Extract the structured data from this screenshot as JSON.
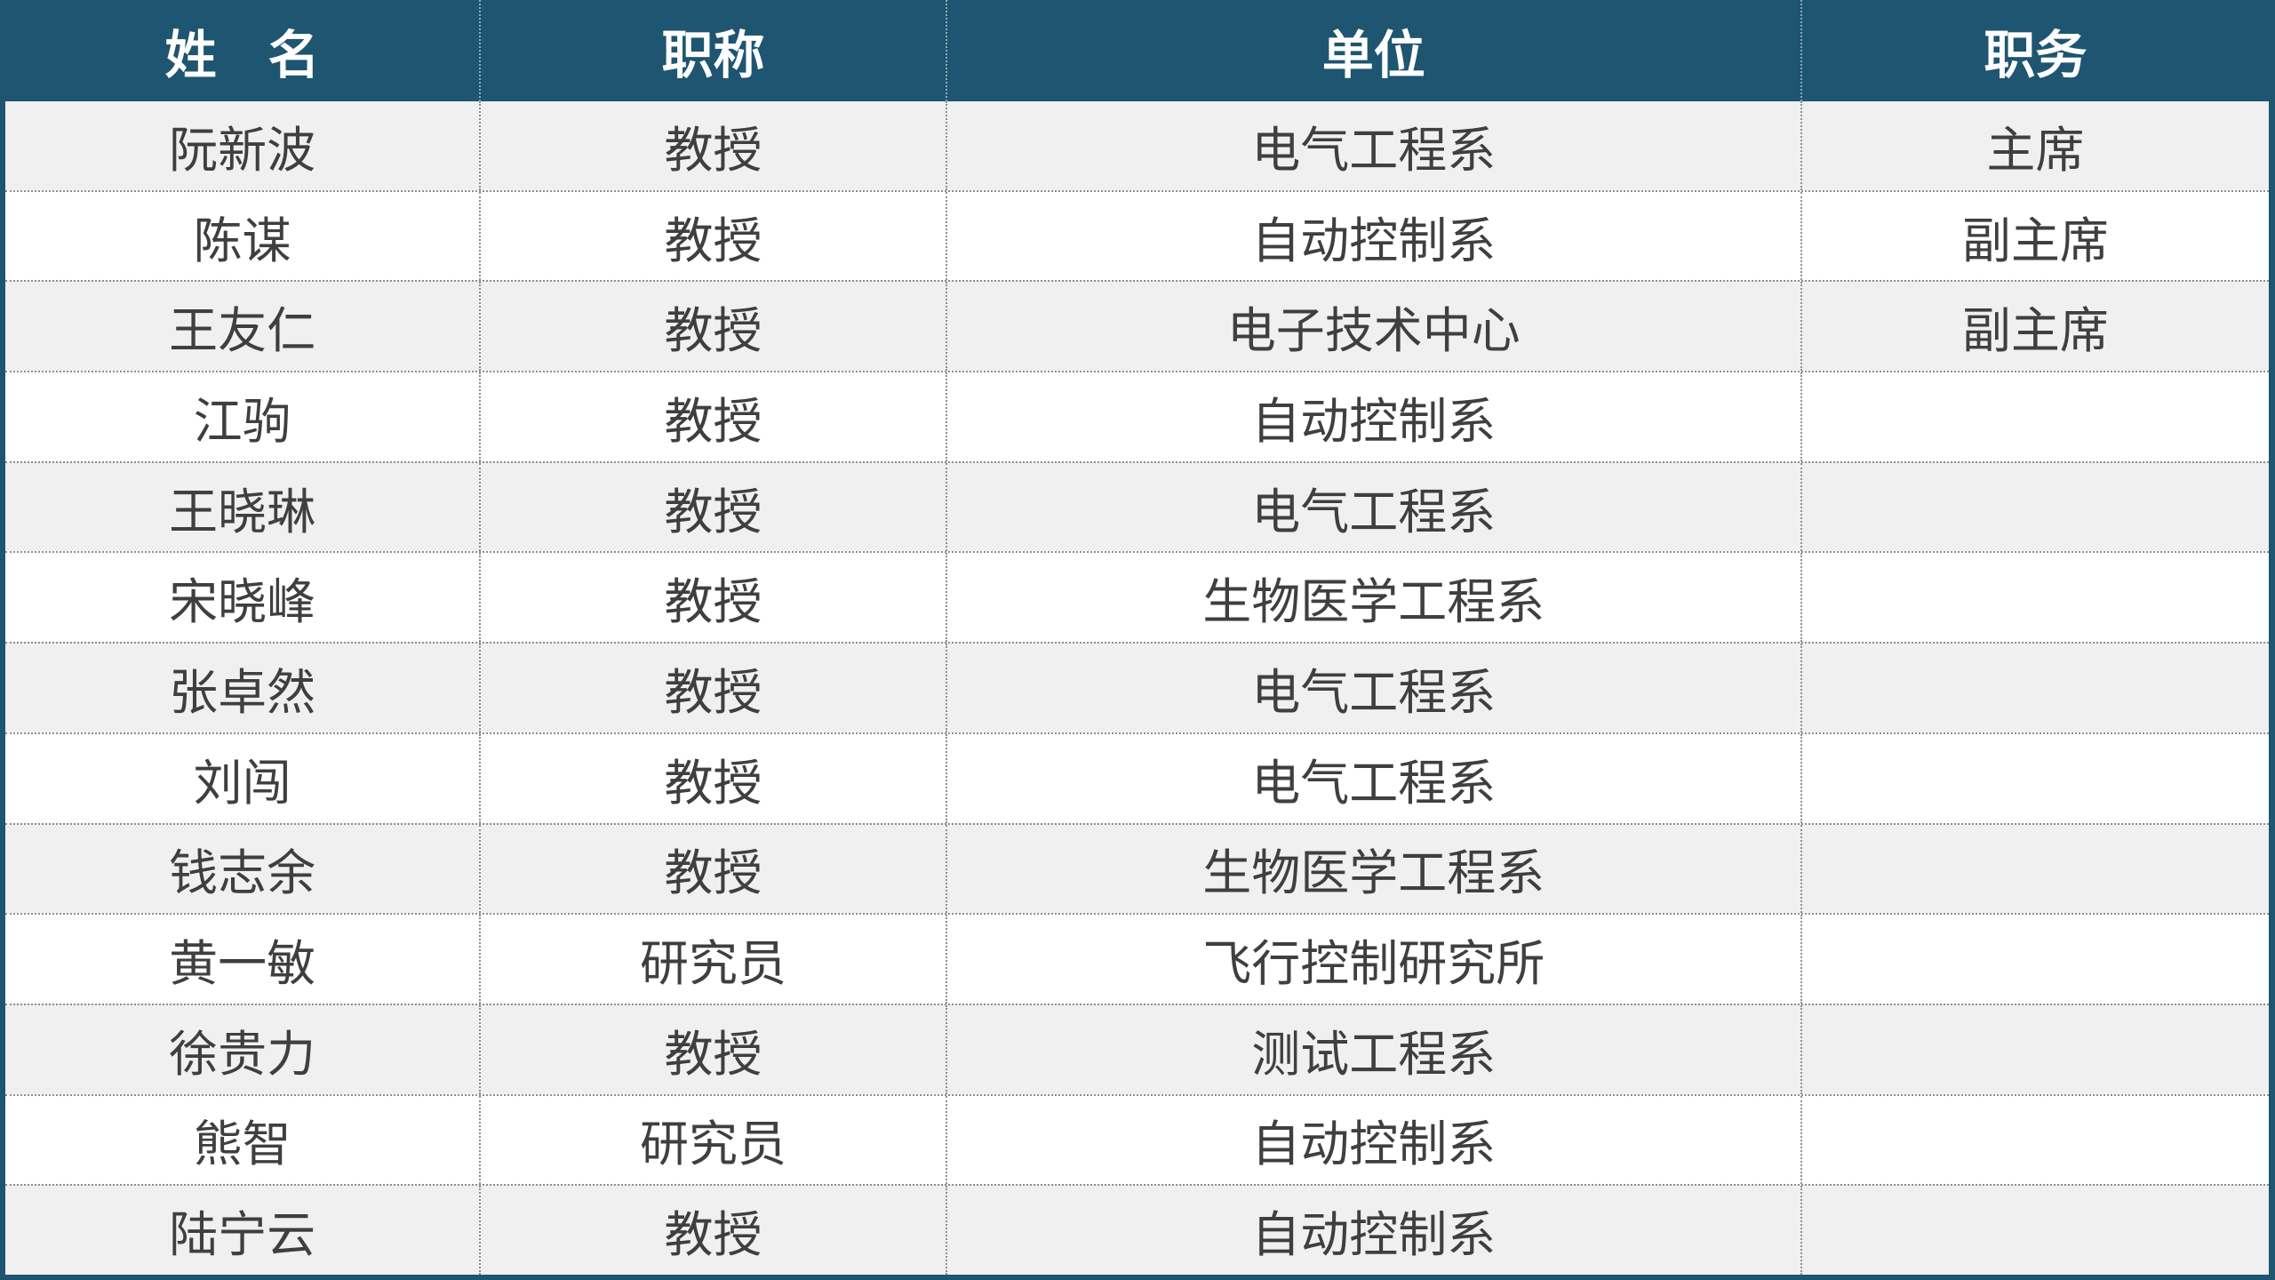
{
  "table": {
    "columns": [
      {
        "key": "name",
        "label": "姓　名"
      },
      {
        "key": "title",
        "label": "职称"
      },
      {
        "key": "unit",
        "label": "单位"
      },
      {
        "key": "position",
        "label": "职务"
      }
    ],
    "rows": [
      {
        "name": "阮新波",
        "title": "教授",
        "unit": "电气工程系",
        "position": "主席"
      },
      {
        "name": "陈谋",
        "title": "教授",
        "unit": "自动控制系",
        "position": "副主席"
      },
      {
        "name": "王友仁",
        "title": "教授",
        "unit": "电子技术中心",
        "position": "副主席"
      },
      {
        "name": "江驹",
        "title": "教授",
        "unit": "自动控制系",
        "position": ""
      },
      {
        "name": "王晓琳",
        "title": "教授",
        "unit": "电气工程系",
        "position": ""
      },
      {
        "name": "宋晓峰",
        "title": "教授",
        "unit": "生物医学工程系",
        "position": ""
      },
      {
        "name": "张卓然",
        "title": "教授",
        "unit": "电气工程系",
        "position": ""
      },
      {
        "name": "刘闯",
        "title": "教授",
        "unit": "电气工程系",
        "position": ""
      },
      {
        "name": "钱志余",
        "title": "教授",
        "unit": "生物医学工程系",
        "position": ""
      },
      {
        "name": "黄一敏",
        "title": "研究员",
        "unit": "飞行控制研究所",
        "position": ""
      },
      {
        "name": "徐贵力",
        "title": "教授",
        "unit": "测试工程系",
        "position": ""
      },
      {
        "name": "熊智",
        "title": "研究员",
        "unit": "自动控制系",
        "position": ""
      },
      {
        "name": "陆宁云",
        "title": "教授",
        "unit": "自动控制系",
        "position": ""
      }
    ],
    "colors": {
      "header_bg": "#1e5571",
      "header_text": "#ffffff",
      "row_odd_bg": "#f0f0f0",
      "row_even_bg": "#ffffff",
      "body_text": "#3f3f3f",
      "frame_border": "#1e5571",
      "separator_dotted": "#8f8f8f"
    }
  }
}
